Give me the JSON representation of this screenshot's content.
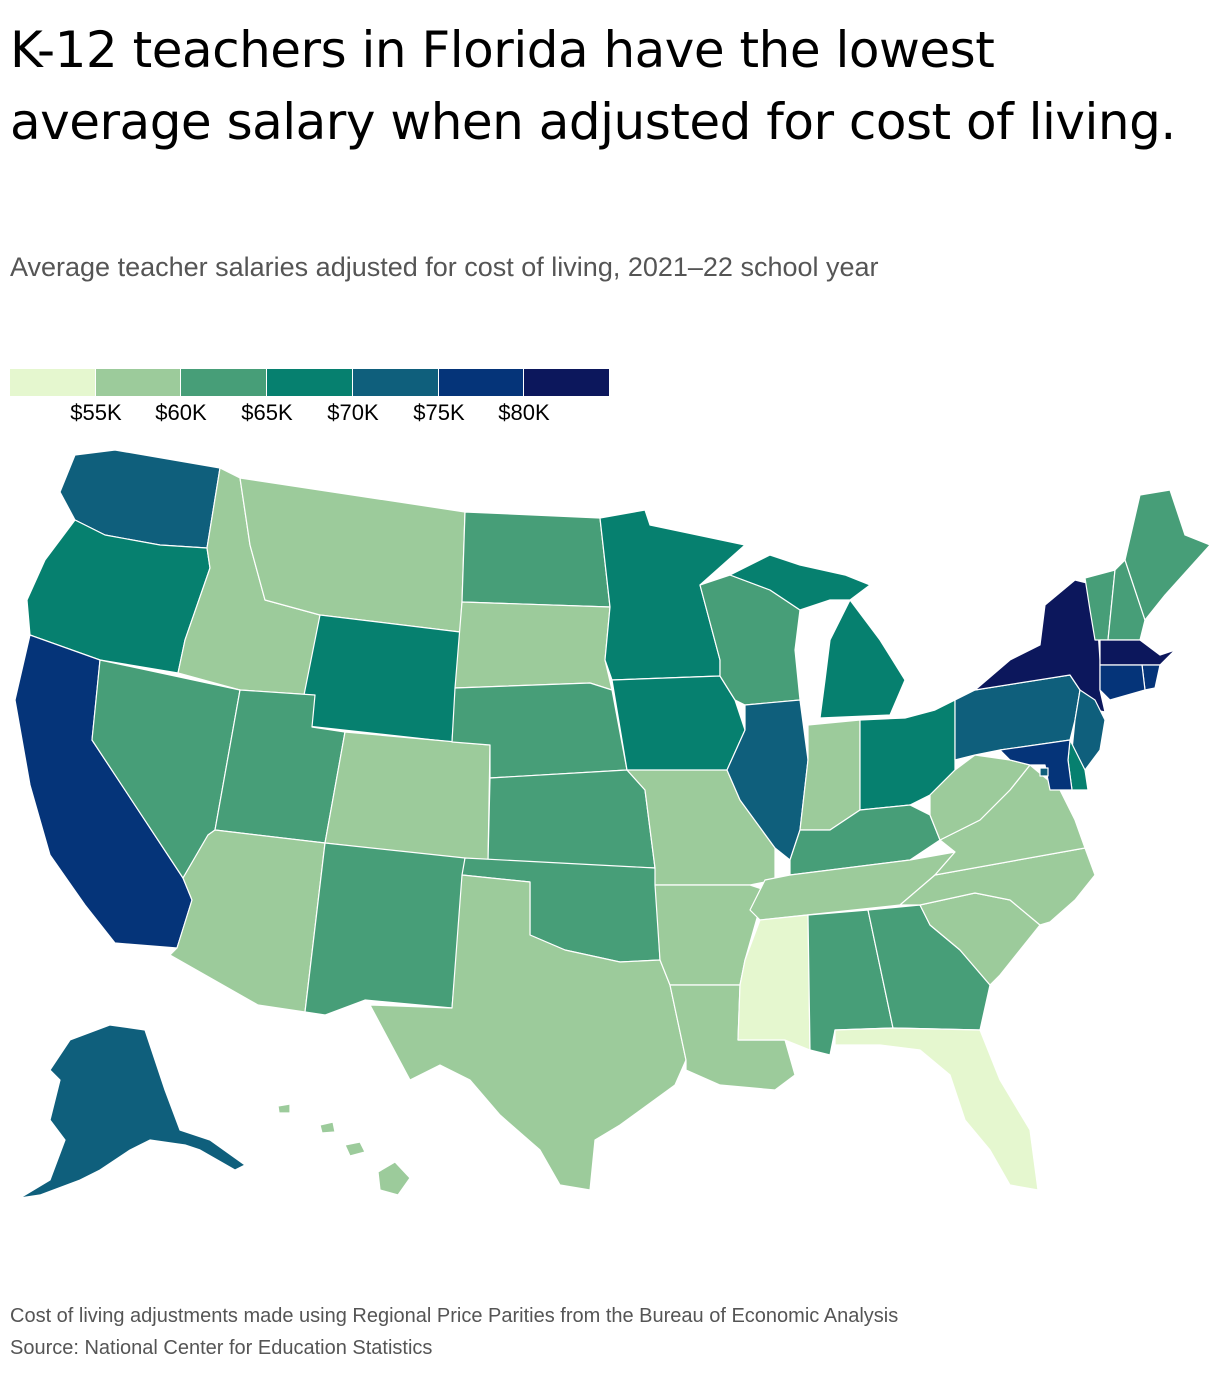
{
  "title": "K-12 teachers in Florida have the lowest average salary when adjusted for cost of living.",
  "subtitle": "Average teacher salaries adjusted for cost of living, 2021–22 school year",
  "legend": {
    "colors": [
      "#e5f7cf",
      "#9ccb9b",
      "#479e78",
      "#06806f",
      "#0f5f7c",
      "#053479",
      "#0c175c"
    ],
    "ticks": [
      "$55K",
      "$60K",
      "$65K",
      "$70K",
      "$75K",
      "$80K"
    ]
  },
  "states": [
    {
      "name": "Washington",
      "bin": 4
    },
    {
      "name": "Oregon",
      "bin": 3
    },
    {
      "name": "California",
      "bin": 5
    },
    {
      "name": "Idaho",
      "bin": 1
    },
    {
      "name": "Nevada",
      "bin": 2
    },
    {
      "name": "Montana",
      "bin": 1
    },
    {
      "name": "Wyoming",
      "bin": 3
    },
    {
      "name": "Utah",
      "bin": 2
    },
    {
      "name": "Colorado",
      "bin": 1
    },
    {
      "name": "Arizona",
      "bin": 1
    },
    {
      "name": "New Mexico",
      "bin": 2
    },
    {
      "name": "North Dakota",
      "bin": 2
    },
    {
      "name": "South Dakota",
      "bin": 1
    },
    {
      "name": "Nebraska",
      "bin": 2
    },
    {
      "name": "Kansas",
      "bin": 2
    },
    {
      "name": "Oklahoma",
      "bin": 2
    },
    {
      "name": "Texas",
      "bin": 1
    },
    {
      "name": "Minnesota",
      "bin": 3
    },
    {
      "name": "Iowa",
      "bin": 3
    },
    {
      "name": "Missouri",
      "bin": 1
    },
    {
      "name": "Arkansas",
      "bin": 1
    },
    {
      "name": "Louisiana",
      "bin": 1
    },
    {
      "name": "Wisconsin",
      "bin": 2
    },
    {
      "name": "Illinois",
      "bin": 4
    },
    {
      "name": "Michigan",
      "bin": 3
    },
    {
      "name": "Indiana",
      "bin": 1
    },
    {
      "name": "Ohio",
      "bin": 3
    },
    {
      "name": "Kentucky",
      "bin": 2
    },
    {
      "name": "Tennessee",
      "bin": 1
    },
    {
      "name": "Mississippi",
      "bin": 0
    },
    {
      "name": "Alabama",
      "bin": 2
    },
    {
      "name": "Georgia",
      "bin": 2
    },
    {
      "name": "Florida",
      "bin": 0
    },
    {
      "name": "South Carolina",
      "bin": 1
    },
    {
      "name": "North Carolina",
      "bin": 1
    },
    {
      "name": "Virginia",
      "bin": 1
    },
    {
      "name": "West Virginia",
      "bin": 1
    },
    {
      "name": "Pennsylvania",
      "bin": 4
    },
    {
      "name": "New York",
      "bin": 6
    },
    {
      "name": "Vermont",
      "bin": 2
    },
    {
      "name": "New Hampshire",
      "bin": 2
    },
    {
      "name": "Maine",
      "bin": 2
    },
    {
      "name": "Massachusetts",
      "bin": 6
    },
    {
      "name": "Rhode Island",
      "bin": 5
    },
    {
      "name": "Connecticut",
      "bin": 5
    },
    {
      "name": "New Jersey",
      "bin": 4
    },
    {
      "name": "Delaware",
      "bin": 3
    },
    {
      "name": "Maryland",
      "bin": 5
    },
    {
      "name": "District of Columbia",
      "bin": 4
    },
    {
      "name": "Alaska",
      "bin": 4
    },
    {
      "name": "Hawaii",
      "bin": 1
    }
  ],
  "footnote": "Cost of living adjustments made using Regional Price Parities from the Bureau of Economic Analysis",
  "source": "Source: National Center for Education Statistics"
}
